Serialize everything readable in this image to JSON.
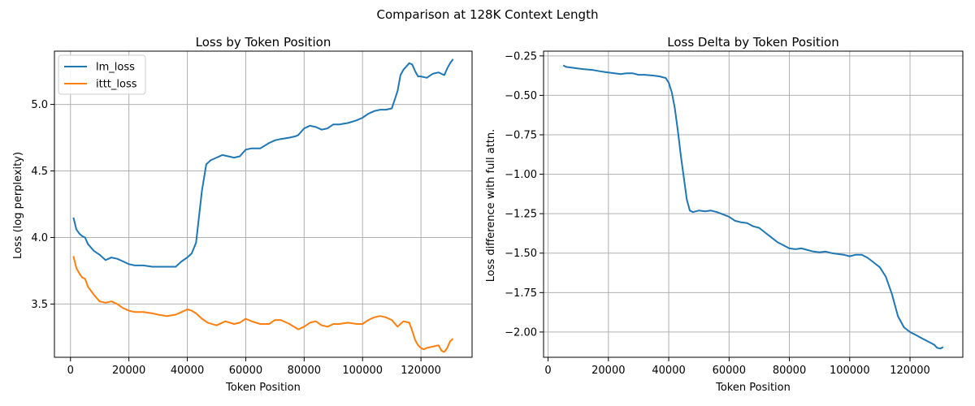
{
  "figure": {
    "suptitle": "Comparison at 128K Context Length"
  },
  "chart_data": [
    {
      "type": "line",
      "title": "Loss by Token Position",
      "xlabel": "Token Position",
      "ylabel": "Loss (log perplexity)",
      "xlim": [
        -5500,
        137500
      ],
      "ylim": [
        3.1,
        5.4
      ],
      "xticks": [
        0,
        20000,
        40000,
        60000,
        80000,
        100000,
        120000
      ],
      "xtick_labels": [
        "0",
        "20000",
        "40000",
        "60000",
        "80000",
        "100000",
        "120000"
      ],
      "yticks": [
        3.5,
        4.0,
        4.5,
        5.0
      ],
      "ytick_labels": [
        "3.5",
        "4.0",
        "4.5",
        "5.0"
      ],
      "grid": true,
      "legend_position": "top-left",
      "series": [
        {
          "name": "lm_loss",
          "color": "#1f77b4",
          "x": [
            1000,
            2000,
            3000,
            4000,
            5000,
            6000,
            8000,
            10000,
            12000,
            14000,
            16000,
            18000,
            20000,
            22000,
            25000,
            28000,
            30000,
            33000,
            36000,
            38000,
            40000,
            41500,
            43000,
            45000,
            46500,
            48000,
            50000,
            52000,
            54000,
            56000,
            58000,
            60000,
            62000,
            65000,
            68000,
            70000,
            72000,
            75000,
            77000,
            78000,
            80000,
            82000,
            84000,
            86000,
            88000,
            90000,
            92000,
            95000,
            98000,
            100000,
            102000,
            104000,
            106000,
            108000,
            110000,
            112000,
            113000,
            114000,
            116000,
            117000,
            118000,
            119000,
            120000,
            122000,
            124000,
            126000,
            127000,
            128000,
            129000,
            130000,
            131000
          ],
          "y": [
            4.15,
            4.06,
            4.03,
            4.01,
            4.0,
            3.95,
            3.9,
            3.87,
            3.83,
            3.85,
            3.84,
            3.82,
            3.8,
            3.79,
            3.79,
            3.78,
            3.78,
            3.78,
            3.78,
            3.82,
            3.85,
            3.88,
            3.96,
            4.35,
            4.55,
            4.58,
            4.6,
            4.62,
            4.61,
            4.6,
            4.61,
            4.66,
            4.67,
            4.67,
            4.71,
            4.73,
            4.74,
            4.75,
            4.76,
            4.77,
            4.82,
            4.84,
            4.83,
            4.81,
            4.82,
            4.85,
            4.85,
            4.86,
            4.88,
            4.9,
            4.93,
            4.95,
            4.96,
            4.96,
            4.97,
            5.1,
            5.22,
            5.26,
            5.31,
            5.3,
            5.25,
            5.21,
            5.21,
            5.2,
            5.23,
            5.24,
            5.23,
            5.22,
            5.27,
            5.31,
            5.34
          ]
        },
        {
          "name": "ittt_loss",
          "color": "#ff7f0e",
          "x": [
            1000,
            2000,
            3000,
            4000,
            5000,
            6000,
            8000,
            10000,
            12000,
            14000,
            16000,
            18000,
            20000,
            22000,
            25000,
            28000,
            30000,
            33000,
            36000,
            38000,
            40000,
            41500,
            43000,
            45000,
            47000,
            50000,
            53000,
            56000,
            58000,
            60000,
            62000,
            65000,
            68000,
            70000,
            72000,
            75000,
            78000,
            80000,
            82000,
            84000,
            86000,
            88000,
            90000,
            92000,
            95000,
            98000,
            100000,
            102000,
            104000,
            106000,
            108000,
            110000,
            112000,
            114000,
            116000,
            117000,
            118000,
            119000,
            120000,
            121000,
            122000,
            124000,
            126000,
            127000,
            128000,
            129000,
            130000,
            131000
          ],
          "y": [
            3.86,
            3.77,
            3.73,
            3.7,
            3.69,
            3.63,
            3.57,
            3.52,
            3.51,
            3.52,
            3.5,
            3.47,
            3.45,
            3.44,
            3.44,
            3.43,
            3.42,
            3.41,
            3.42,
            3.44,
            3.46,
            3.45,
            3.43,
            3.39,
            3.36,
            3.34,
            3.37,
            3.35,
            3.36,
            3.39,
            3.37,
            3.35,
            3.35,
            3.38,
            3.38,
            3.35,
            3.31,
            3.33,
            3.36,
            3.37,
            3.34,
            3.33,
            3.35,
            3.35,
            3.36,
            3.35,
            3.35,
            3.38,
            3.4,
            3.41,
            3.4,
            3.38,
            3.33,
            3.37,
            3.36,
            3.3,
            3.23,
            3.19,
            3.17,
            3.16,
            3.17,
            3.18,
            3.19,
            3.15,
            3.14,
            3.17,
            3.22,
            3.24
          ]
        }
      ]
    },
    {
      "type": "line",
      "title": "Loss Delta by Token Position",
      "xlabel": "Token Position",
      "ylabel": "Loss difference with full attn.",
      "xlim": [
        -1500,
        137500
      ],
      "ylim": [
        -2.16,
        -0.22
      ],
      "xticks": [
        0,
        20000,
        40000,
        60000,
        80000,
        100000,
        120000
      ],
      "xtick_labels": [
        "0",
        "20000",
        "40000",
        "60000",
        "80000",
        "100000",
        "120000"
      ],
      "yticks": [
        -0.25,
        -0.5,
        -0.75,
        -1.0,
        -1.25,
        -1.5,
        -1.75,
        -2.0
      ],
      "ytick_labels": [
        "−0.25",
        "−0.50",
        "−0.75",
        "−1.00",
        "−1.25",
        "−1.50",
        "−1.75",
        "−2.00"
      ],
      "grid": true,
      "series": [
        {
          "color": "#1f77b4",
          "x": [
            5000,
            6000,
            8000,
            10000,
            12000,
            15000,
            18000,
            20000,
            22000,
            24000,
            26000,
            28000,
            30000,
            32000,
            35000,
            37000,
            38000,
            39000,
            40000,
            41000,
            42000,
            43000,
            44000,
            45000,
            46000,
            47000,
            48000,
            50000,
            52000,
            54000,
            56000,
            58000,
            60000,
            62000,
            64000,
            66000,
            68000,
            70000,
            72000,
            74000,
            76000,
            78000,
            80000,
            82000,
            84000,
            86000,
            88000,
            90000,
            92000,
            94000,
            96000,
            98000,
            100000,
            102000,
            104000,
            106000,
            108000,
            110000,
            112000,
            114000,
            116000,
            118000,
            120000,
            122000,
            124000,
            126000,
            128000,
            129000,
            130000,
            131000
          ],
          "y": [
            -0.31,
            -0.32,
            -0.325,
            -0.33,
            -0.335,
            -0.34,
            -0.35,
            -0.355,
            -0.36,
            -0.365,
            -0.36,
            -0.36,
            -0.37,
            -0.37,
            -0.375,
            -0.38,
            -0.385,
            -0.39,
            -0.42,
            -0.48,
            -0.58,
            -0.72,
            -0.88,
            -1.02,
            -1.16,
            -1.23,
            -1.24,
            -1.23,
            -1.235,
            -1.23,
            -1.24,
            -1.255,
            -1.27,
            -1.295,
            -1.305,
            -1.31,
            -1.33,
            -1.34,
            -1.37,
            -1.4,
            -1.43,
            -1.45,
            -1.47,
            -1.475,
            -1.47,
            -1.48,
            -1.49,
            -1.495,
            -1.49,
            -1.5,
            -1.505,
            -1.51,
            -1.52,
            -1.51,
            -1.51,
            -1.53,
            -1.56,
            -1.59,
            -1.65,
            -1.76,
            -1.9,
            -1.97,
            -2.0,
            -2.02,
            -2.04,
            -2.06,
            -2.08,
            -2.1,
            -2.105,
            -2.095
          ]
        }
      ]
    }
  ]
}
